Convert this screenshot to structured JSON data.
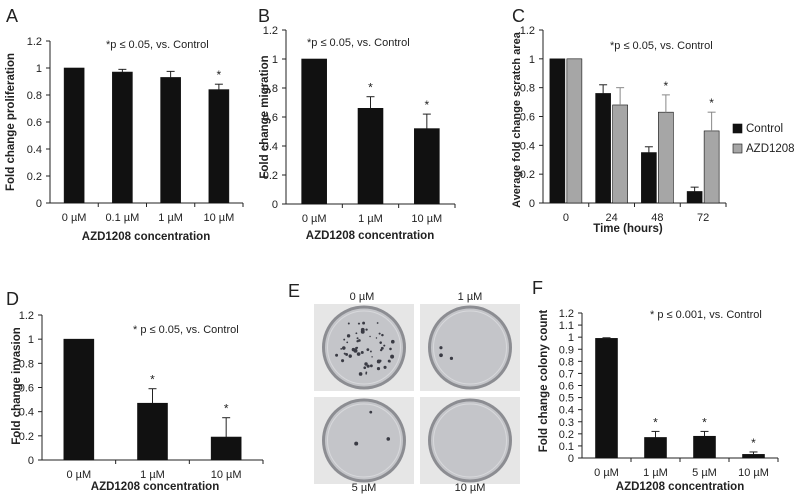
{
  "chart_data": [
    {
      "panel": "A",
      "type": "bar",
      "note": "*p ≤ 0.05, vs. Control",
      "ylabel": "Fold change proliferation",
      "xlabel": "AZD1208  concentration",
      "ylim": [
        0,
        1.2
      ],
      "yticks": [
        "0",
        "0.2",
        "0.4",
        "0.6",
        "0.8",
        "1",
        "1.2"
      ],
      "categories": [
        "0 µM",
        "0.1 µM",
        "1 µM",
        "10 µM"
      ],
      "values": [
        1.0,
        0.97,
        0.93,
        0.84
      ],
      "errors": [
        0.0,
        0.02,
        0.045,
        0.04
      ],
      "signif": [
        "",
        "",
        "",
        "*"
      ],
      "color": "#111111"
    },
    {
      "panel": "B",
      "type": "bar",
      "note": "*p ≤ 0.05, vs. Control",
      "ylabel": "Fold change migration",
      "xlabel": "AZD1208  concentration",
      "ylim": [
        0,
        1.2
      ],
      "yticks": [
        "0",
        "0.2",
        "0.4",
        "0.6",
        "0.8",
        "1",
        "1.2"
      ],
      "categories": [
        "0 µM",
        "1 µM",
        "10 µM"
      ],
      "values": [
        1.0,
        0.66,
        0.52
      ],
      "errors": [
        0.0,
        0.08,
        0.1
      ],
      "signif": [
        "",
        "*",
        "*"
      ],
      "color": "#111111"
    },
    {
      "panel": "C",
      "type": "bar",
      "note": "*p ≤ 0.05, vs. Control",
      "ylabel": "Average fold change scratch area",
      "xlabel": "Time (hours)",
      "ylim": [
        0,
        1.2
      ],
      "yticks": [
        "0",
        "0.2",
        "0.4",
        "0.6",
        "0.8",
        "1",
        "1.2"
      ],
      "categories": [
        "0",
        "24",
        "48",
        "72"
      ],
      "series": [
        {
          "name": "Control",
          "values": [
            1.0,
            0.76,
            0.35,
            0.08
          ],
          "errors": [
            0.0,
            0.06,
            0.04,
            0.03
          ],
          "color": "#111111"
        },
        {
          "name": "AZD1208",
          "values": [
            1.0,
            0.68,
            0.63,
            0.5
          ],
          "errors": [
            0.0,
            0.12,
            0.12,
            0.13
          ],
          "color": "#a6a6a6"
        }
      ],
      "signif": [
        "",
        "",
        "*",
        "*"
      ],
      "legend": "right"
    },
    {
      "panel": "D",
      "type": "bar",
      "note": "* p ≤ 0.05, vs. Control",
      "ylabel": "Fold change invasion",
      "xlabel": "AZD1208  concentration",
      "ylim": [
        0,
        1.2
      ],
      "yticks": [
        "0",
        "0.2",
        "0.4",
        "0.6",
        "0.8",
        "1",
        "1.2"
      ],
      "categories": [
        "0 µM",
        "1 µM",
        "10 µM"
      ],
      "values": [
        1.0,
        0.47,
        0.19
      ],
      "errors": [
        0.0,
        0.12,
        0.16
      ],
      "signif": [
        "",
        "*",
        "*"
      ],
      "color": "#111111"
    },
    {
      "panel": "F",
      "type": "bar",
      "note": "* p ≤ 0.001, vs. Control",
      "ylabel": "Fold change colony count",
      "xlabel": "AZD1208  concentration",
      "ylim": [
        0,
        1.2
      ],
      "yticks": [
        "0",
        "0.1",
        "0.2",
        "0.3",
        "0.4",
        "0.5",
        "0.6",
        "0.7",
        "0.8",
        "0.9",
        "1",
        "1.1",
        "1.2"
      ],
      "categories": [
        "0 µM",
        "1 µM",
        "5 µM",
        "10 µM"
      ],
      "values": [
        0.99,
        0.17,
        0.18,
        0.03
      ],
      "errors": [
        0.005,
        0.05,
        0.04,
        0.02
      ],
      "signif": [
        "",
        "*",
        "*",
        "*"
      ],
      "color": "#111111"
    }
  ],
  "panel_e": {
    "letter": "E",
    "wells": [
      {
        "label": "0 µM",
        "colonies": "many"
      },
      {
        "label": "1 µM",
        "colonies": "few"
      },
      {
        "label": "5 µM",
        "colonies": "few"
      },
      {
        "label": "10 µM",
        "colonies": "none"
      }
    ]
  },
  "colors": {
    "bar_dark": "#111111",
    "bar_light": "#a6a6a6",
    "well_fill": "#c4c5c9",
    "plate_bg": "#e6e6e6"
  }
}
